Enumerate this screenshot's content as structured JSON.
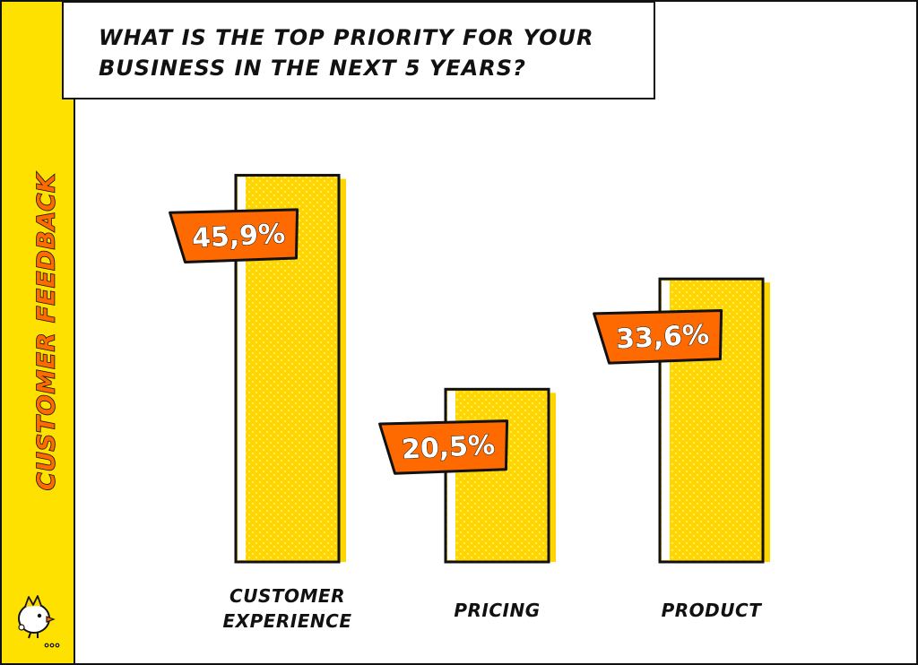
{
  "title_lines": [
    "WHAT IS THE TOP PRIORITY FOR YOUR",
    "BUSINESS IN THE NEXT 5 YEARS?"
  ],
  "side_title": "CUSTOMER FEEDBACK",
  "colors": {
    "sidebar": "#ffe100",
    "bar_fill": "#ffd500",
    "bar_shadow": "#ffd500",
    "label_box": "#ff6a00",
    "ink": "#111111",
    "background": "#ffffff"
  },
  "chart_data": {
    "type": "bar",
    "categories": [
      [
        "CUSTOMER",
        "EXPERIENCE"
      ],
      [
        "PRICING"
      ],
      [
        "PRODUCT"
      ]
    ],
    "values": [
      45.9,
      20.5,
      33.6
    ],
    "value_labels": [
      "45,9%",
      "20,5%",
      "33,6%"
    ],
    "ylim": [
      0,
      50
    ],
    "grid": false,
    "legend": "none"
  }
}
